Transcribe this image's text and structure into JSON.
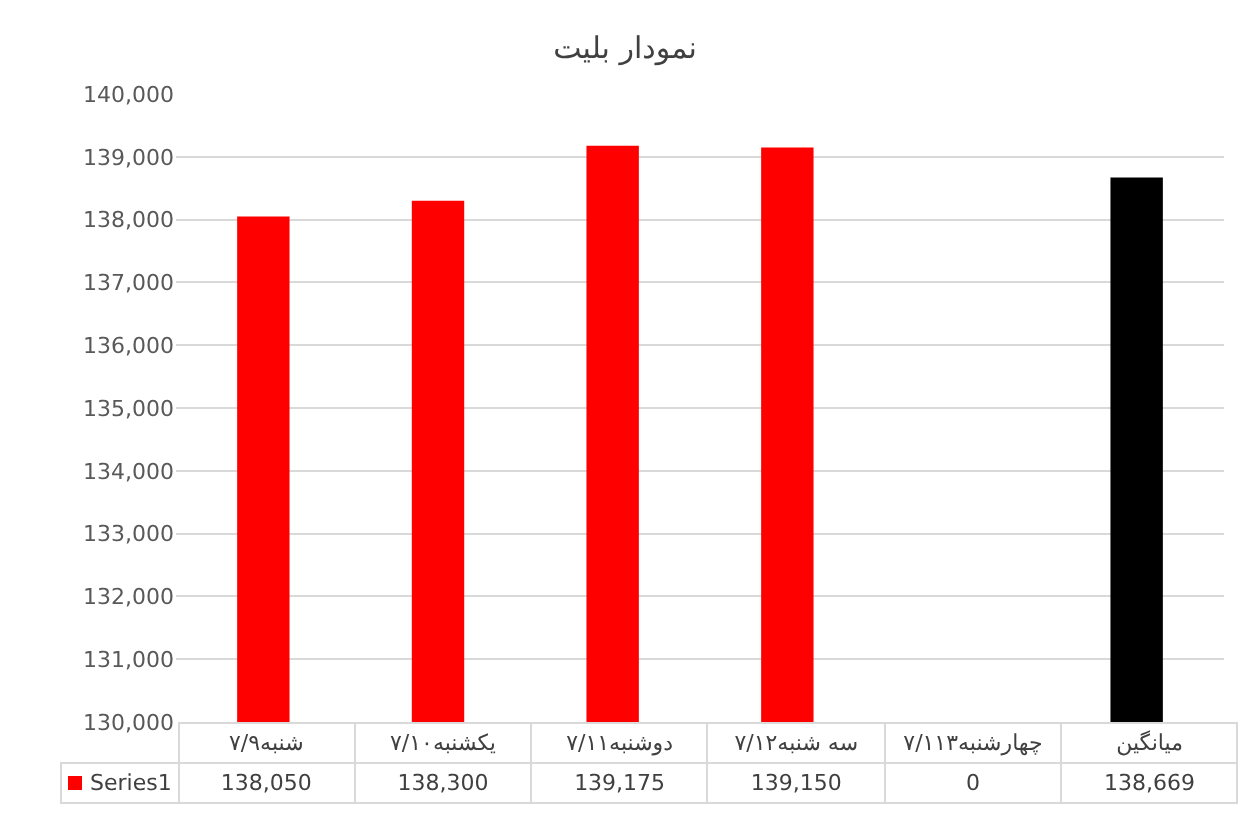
{
  "chart_data": {
    "type": "bar",
    "title": "نمودار بلیت",
    "categories": [
      "شنبه۷/۹",
      "یکشنبه۷/۱۰",
      "دوشنبه۷/۱۱",
      "سه شنبه۷/۱۲",
      "چهارشنبه۷/۱۱۳",
      "میانگین"
    ],
    "series": [
      {
        "name": "Series1",
        "color": "#ff0000",
        "colors": [
          "#ff0000",
          "#ff0000",
          "#ff0000",
          "#ff0000",
          "#ff0000",
          "#000000"
        ],
        "values": [
          138050,
          138300,
          139175,
          139150,
          null,
          138669
        ],
        "value_labels": [
          "138,050",
          "138,300",
          "139,175",
          "139,150",
          "0",
          "138,669"
        ]
      }
    ],
    "ylim": [
      130000,
      140000
    ],
    "yticks": [
      {
        "value": 130000,
        "label": "130,000"
      },
      {
        "value": 131000,
        "label": "131,000"
      },
      {
        "value": 132000,
        "label": "132,000"
      },
      {
        "value": 133000,
        "label": "133,000"
      },
      {
        "value": 134000,
        "label": "134,000"
      },
      {
        "value": 135000,
        "label": "135,000"
      },
      {
        "value": 136000,
        "label": "136,000"
      },
      {
        "value": 137000,
        "label": "137,000"
      },
      {
        "value": 138000,
        "label": "138,000"
      },
      {
        "value": 139000,
        "label": "139,000"
      },
      {
        "value": 140000,
        "label": "140,000"
      }
    ],
    "grid": "y",
    "legend": "bottom"
  }
}
